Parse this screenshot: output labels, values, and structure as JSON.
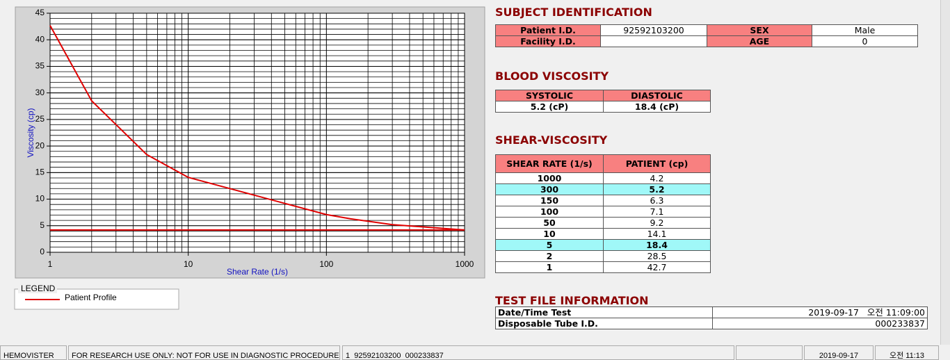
{
  "chart_data": {
    "type": "line",
    "xlabel": "Shear Rate (1/s)",
    "ylabel": "Viscosity (cp)",
    "xscale": "log",
    "xlim": [
      1,
      1000
    ],
    "ylim": [
      0,
      45
    ],
    "xticks": [
      1,
      10,
      100,
      1000
    ],
    "yticks": [
      0,
      5,
      10,
      15,
      20,
      25,
      30,
      35,
      40,
      45
    ],
    "grid": true,
    "legend_title": "LEGEND",
    "series": [
      {
        "name": "Patient Profile",
        "color": "#e00000",
        "x": [
          1,
          2,
          5,
          10,
          50,
          100,
          150,
          300,
          1000
        ],
        "values": [
          42.7,
          28.5,
          18.4,
          14.1,
          9.2,
          7.1,
          6.3,
          5.2,
          4.2
        ]
      },
      {
        "color": "#e00000",
        "x": [
          1,
          1000
        ],
        "values": [
          4.2,
          4.2
        ]
      }
    ]
  },
  "subject": {
    "title": "SUBJECT IDENTIFICATION",
    "patient_id_label": "Patient I.D.",
    "patient_id": "92592103200",
    "sex_label": "SEX",
    "sex": "Male",
    "facility_label": "Facility I.D.",
    "age_label": "AGE",
    "age": "0"
  },
  "blood": {
    "title": "BLOOD VISCOSITY",
    "headers": [
      "SYSTOLIC",
      "DIASTOLIC"
    ],
    "values": [
      "5.2 (cP)",
      "18.4 (cP)"
    ]
  },
  "shear": {
    "title": "SHEAR-VISCOSITY",
    "headers": [
      "SHEAR RATE (1/s)",
      "PATIENT (cp)"
    ],
    "rows": [
      [
        "1000",
        "4.2"
      ],
      [
        "300",
        "5.2"
      ],
      [
        "150",
        "6.3"
      ],
      [
        "100",
        "7.1"
      ],
      [
        "50",
        "9.2"
      ],
      [
        "10",
        "14.1"
      ],
      [
        "5",
        "18.4"
      ],
      [
        "2",
        "28.5"
      ],
      [
        "1",
        "42.7"
      ]
    ]
  },
  "testfile": {
    "title": "TEST FILE INFORMATION",
    "rows": [
      [
        "Date/Time Test",
        "2019-09-17   오전 11:09:00"
      ],
      [
        "Disposable Tube I.D.",
        "000233837"
      ]
    ]
  },
  "status": [
    "HEMOVISTER",
    "FOR RESEARCH USE ONLY: NOT FOR USE IN DIAGNOSTIC PROCEDURES",
    "1  92592103200  000233837",
    "2019-09-17",
    "오전 11:13"
  ]
}
